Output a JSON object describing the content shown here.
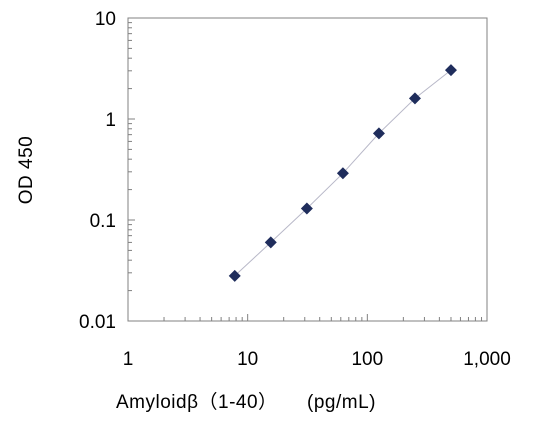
{
  "chart_data": {
    "type": "scatter",
    "title": "",
    "xlabel": "Amyloidβ（1-40）　　(pg/mL)",
    "ylabel": "OD 450",
    "x_scale": "log",
    "y_scale": "log",
    "xlim": [
      1,
      1000
    ],
    "ylim": [
      0.01,
      10
    ],
    "x_ticks": [
      1,
      10,
      100,
      1000
    ],
    "x_tick_labels": [
      "1",
      "10",
      "100",
      "1,000"
    ],
    "y_ticks": [
      0.01,
      0.1,
      1,
      10
    ],
    "y_tick_labels": [
      "0.01",
      "0.1",
      "1",
      "10"
    ],
    "grid": false,
    "legend": "none",
    "marker": "diamond",
    "colors": {
      "marker": "#1f2d5c",
      "line": "#b8b8c8",
      "axis": "#808080"
    },
    "series": [
      {
        "x": [
          7.8,
          15.6,
          31.25,
          62.5,
          125,
          250,
          500
        ],
        "y": [
          0.028,
          0.06,
          0.13,
          0.29,
          0.72,
          1.6,
          3.05
        ],
        "trendline": true
      }
    ]
  }
}
